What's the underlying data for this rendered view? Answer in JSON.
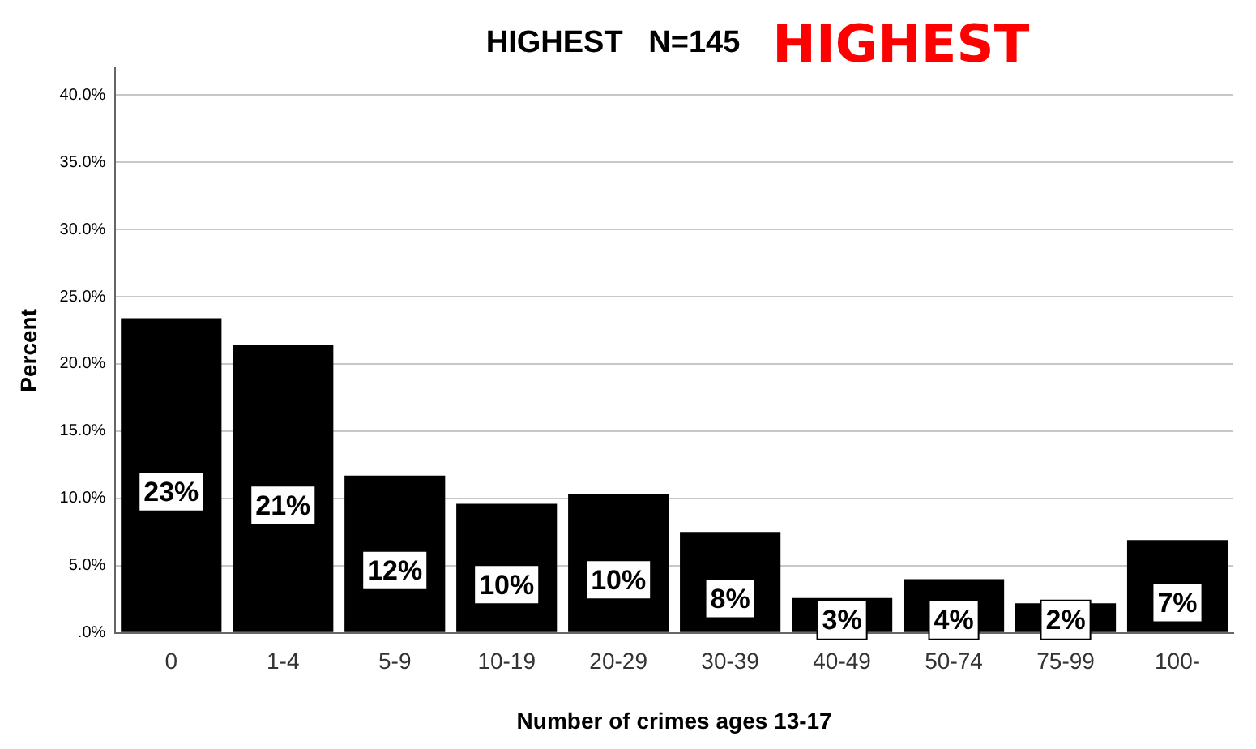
{
  "chart_data": {
    "type": "bar",
    "title": "HIGHEST   N=145",
    "annotations": [
      "HIGHEST"
    ],
    "xlabel": "Number of crimes ages 13-17",
    "ylabel": "Percent",
    "categories": [
      "0",
      "1-4",
      "5-9",
      "10-19",
      "20-29",
      "30-39",
      "40-49",
      "50-74",
      "75-99",
      "100-"
    ],
    "values": [
      23.4,
      21.4,
      11.7,
      9.6,
      10.3,
      7.5,
      2.6,
      4.0,
      2.2,
      6.9
    ],
    "value_labels": [
      "23%",
      "21%",
      "12%",
      "10%",
      "10%",
      "8%",
      "3%",
      "4%",
      "2%",
      "7%"
    ],
    "color": "#000000",
    "ylim": [
      0,
      42
    ],
    "yticks": [
      {
        "value": 0,
        "label": ".0%"
      },
      {
        "value": 5,
        "label": "5.0%"
      },
      {
        "value": 10,
        "label": "10.0%"
      },
      {
        "value": 15,
        "label": "15.0%"
      },
      {
        "value": 20,
        "label": "20.0%"
      },
      {
        "value": 25,
        "label": "25.0%"
      },
      {
        "value": 30,
        "label": "30.0%"
      },
      {
        "value": 35,
        "label": "35.0%"
      },
      {
        "value": 40,
        "label": "40.0%"
      }
    ],
    "grid": "y",
    "legend": false
  }
}
